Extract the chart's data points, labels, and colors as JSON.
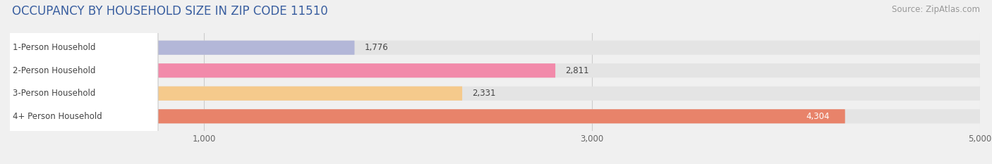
{
  "title": "OCCUPANCY BY HOUSEHOLD SIZE IN ZIP CODE 11510",
  "source": "Source: ZipAtlas.com",
  "categories": [
    "1-Person Household",
    "2-Person Household",
    "3-Person Household",
    "4+ Person Household"
  ],
  "values": [
    1776,
    2811,
    2331,
    4304
  ],
  "value_labels": [
    "1,776",
    "2,811",
    "2,331",
    "4,304"
  ],
  "bar_colors": [
    "#b3b7d8",
    "#f28aaa",
    "#f5ca8c",
    "#e8836a"
  ],
  "xlim": [
    0,
    5000
  ],
  "xticks": [
    1000,
    3000,
    5000
  ],
  "xtick_labels": [
    "1,000",
    "3,000",
    "5,000"
  ],
  "background_color": "#f0f0f0",
  "bar_background_color": "#e4e4e4",
  "title_color": "#3a5fa0",
  "title_fontsize": 12,
  "source_fontsize": 8.5,
  "label_fontsize": 8.5,
  "value_fontsize": 8.5,
  "tick_fontsize": 8.5,
  "fig_width": 14.06,
  "fig_height": 2.33
}
